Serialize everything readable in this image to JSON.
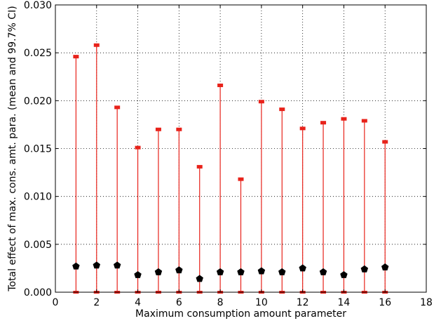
{
  "chart_data": {
    "type": "scatter",
    "title": "",
    "xlabel": "Maximum consumption amount parameter",
    "ylabel": "Total effect of max. cons. amt. para. (mean and 99.7% CI)",
    "xlim": [
      0,
      18
    ],
    "ylim": [
      0,
      0.03
    ],
    "grid": true,
    "x_ticks": [
      0,
      2,
      4,
      6,
      8,
      10,
      12,
      14,
      16,
      18
    ],
    "y_ticks": [
      0.0,
      0.005,
      0.01,
      0.015,
      0.02,
      0.025,
      0.03
    ],
    "x_tick_labels": [
      "0",
      "2",
      "4",
      "6",
      "8",
      "10",
      "12",
      "14",
      "16",
      "18"
    ],
    "y_tick_labels": [
      "0.000",
      "0.005",
      "0.010",
      "0.015",
      "0.020",
      "0.025",
      "0.030"
    ],
    "x": [
      1,
      2,
      3,
      4,
      5,
      6,
      7,
      8,
      9,
      10,
      11,
      12,
      13,
      14,
      15,
      16
    ],
    "mean": [
      0.0027,
      0.0028,
      0.0028,
      0.0018,
      0.0021,
      0.0023,
      0.0014,
      0.0021,
      0.0021,
      0.0022,
      0.0021,
      0.0025,
      0.0021,
      0.0018,
      0.0024,
      0.0026
    ],
    "ci_low": [
      0,
      0,
      0,
      0,
      0,
      0,
      0,
      0,
      0,
      0,
      0,
      0,
      0,
      0,
      0,
      0
    ],
    "ci_high": [
      0.0246,
      0.0258,
      0.0193,
      0.0151,
      0.017,
      0.017,
      0.0131,
      0.0216,
      0.0118,
      0.0199,
      0.0191,
      0.0171,
      0.0177,
      0.0181,
      0.0179,
      0.0157
    ],
    "colors": {
      "ci": "#e8221a",
      "mean": "#000000"
    }
  }
}
